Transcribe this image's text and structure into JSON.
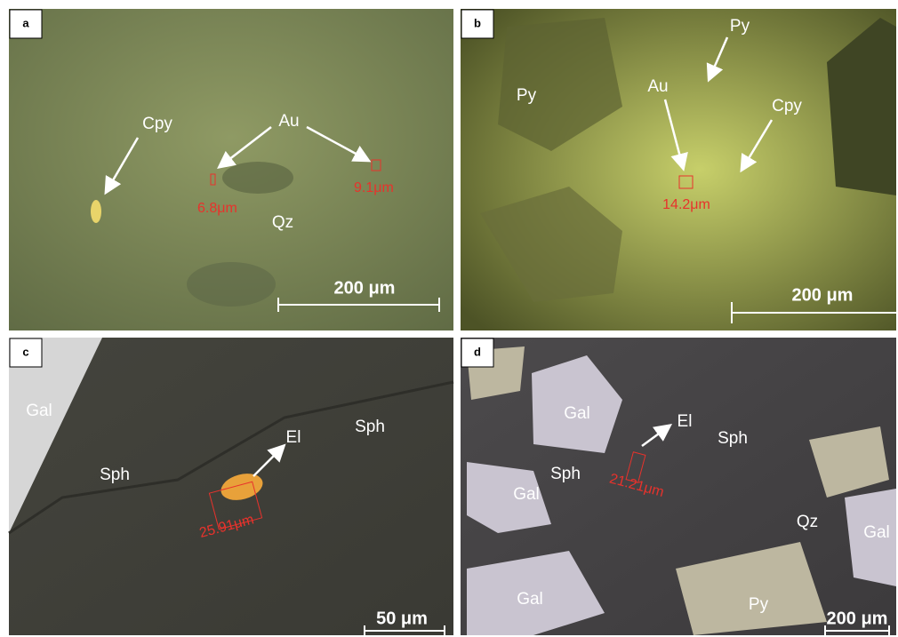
{
  "panels": [
    {
      "label": "a",
      "labels": [
        "Cpy",
        "Au",
        "Qz"
      ],
      "measurements": [
        "6.8μm",
        "9.1μm"
      ],
      "scale_bar": "200 μm"
    },
    {
      "label": "b",
      "labels": [
        "Py",
        "Py",
        "Au",
        "Cpy"
      ],
      "measurements": [
        "14.2μm"
      ],
      "scale_bar": "200 μm"
    },
    {
      "label": "c",
      "labels": [
        "Gal",
        "Sph",
        "El",
        "Sph"
      ],
      "measurements": [
        "25.91μm"
      ],
      "scale_bar": "50 μm"
    },
    {
      "label": "d",
      "labels": [
        "Gal",
        "El",
        "Sph",
        "Sph",
        "Gal",
        "Qz",
        "Gal",
        "Gal",
        "Py"
      ],
      "measurements": [
        "21.21μm"
      ],
      "scale_bar": "200 μm"
    }
  ]
}
